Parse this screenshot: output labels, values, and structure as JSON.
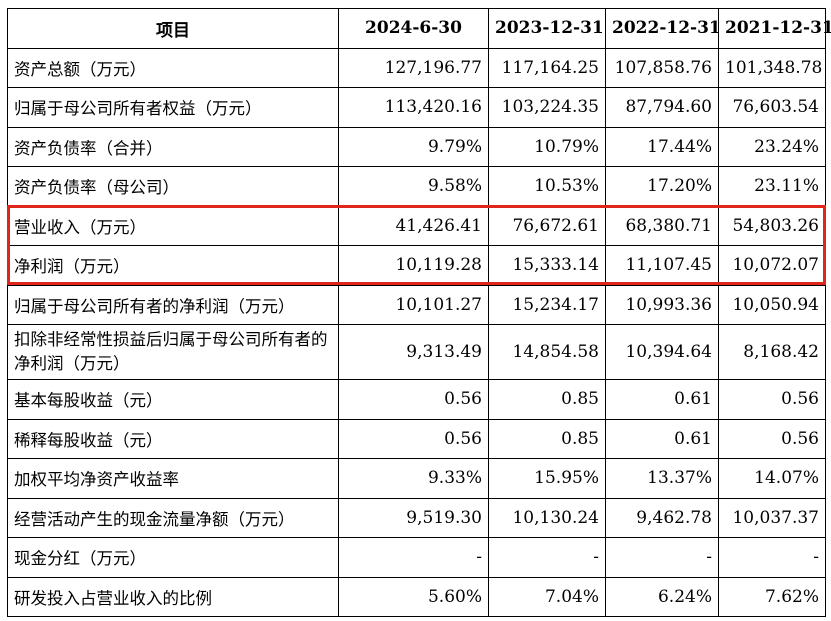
{
  "table": {
    "headers": [
      "项目",
      "2024-6-30",
      "2023-12-31",
      "2022-12-31",
      "2021-12-31"
    ],
    "rows": [
      {
        "label": "资产总额（万元）",
        "values": [
          "127,196.77",
          "117,164.25",
          "107,858.76",
          "101,348.78"
        ]
      },
      {
        "label": "归属于母公司所有者权益（万元）",
        "values": [
          "113,420.16",
          "103,224.35",
          "87,794.60",
          "76,603.54"
        ]
      },
      {
        "label": "资产负债率（合并）",
        "values": [
          "9.79%",
          "10.79%",
          "17.44%",
          "23.24%"
        ]
      },
      {
        "label": "资产负债率（母公司）",
        "values": [
          "9.58%",
          "10.53%",
          "17.20%",
          "23.11%"
        ]
      },
      {
        "label": "营业收入（万元）",
        "values": [
          "41,426.41",
          "76,672.61",
          "68,380.71",
          "54,803.26"
        ]
      },
      {
        "label": "净利润（万元）",
        "values": [
          "10,119.28",
          "15,333.14",
          "11,107.45",
          "10,072.07"
        ]
      },
      {
        "label": "归属于母公司所有者的净利润（万元）",
        "values": [
          "10,101.27",
          "15,234.17",
          "10,993.36",
          "10,050.94"
        ]
      },
      {
        "label": "扣除非经常性损益后归属于母公司所有者的净利润（万元）",
        "values": [
          "9,313.49",
          "14,854.58",
          "10,394.64",
          "8,168.42"
        ]
      },
      {
        "label": "基本每股收益（元）",
        "values": [
          "0.56",
          "0.85",
          "0.61",
          "0.56"
        ]
      },
      {
        "label": "稀释每股收益（元）",
        "values": [
          "0.56",
          "0.85",
          "0.61",
          "0.56"
        ]
      },
      {
        "label": "加权平均净资产收益率",
        "values": [
          "9.33%",
          "15.95%",
          "13.37%",
          "14.07%"
        ]
      },
      {
        "label": "经营活动产生的现金流量净额（万元）",
        "values": [
          "9,519.30",
          "10,130.24",
          "9,462.78",
          "10,037.37"
        ]
      },
      {
        "label": "现金分红（万元）",
        "values": [
          "-",
          "-",
          "-",
          "-"
        ]
      },
      {
        "label": "研发投入占营业收入的比例",
        "values": [
          "5.60%",
          "7.04%",
          "6.24%",
          "7.62%"
        ]
      }
    ]
  },
  "highlight_color": "#e0261b"
}
